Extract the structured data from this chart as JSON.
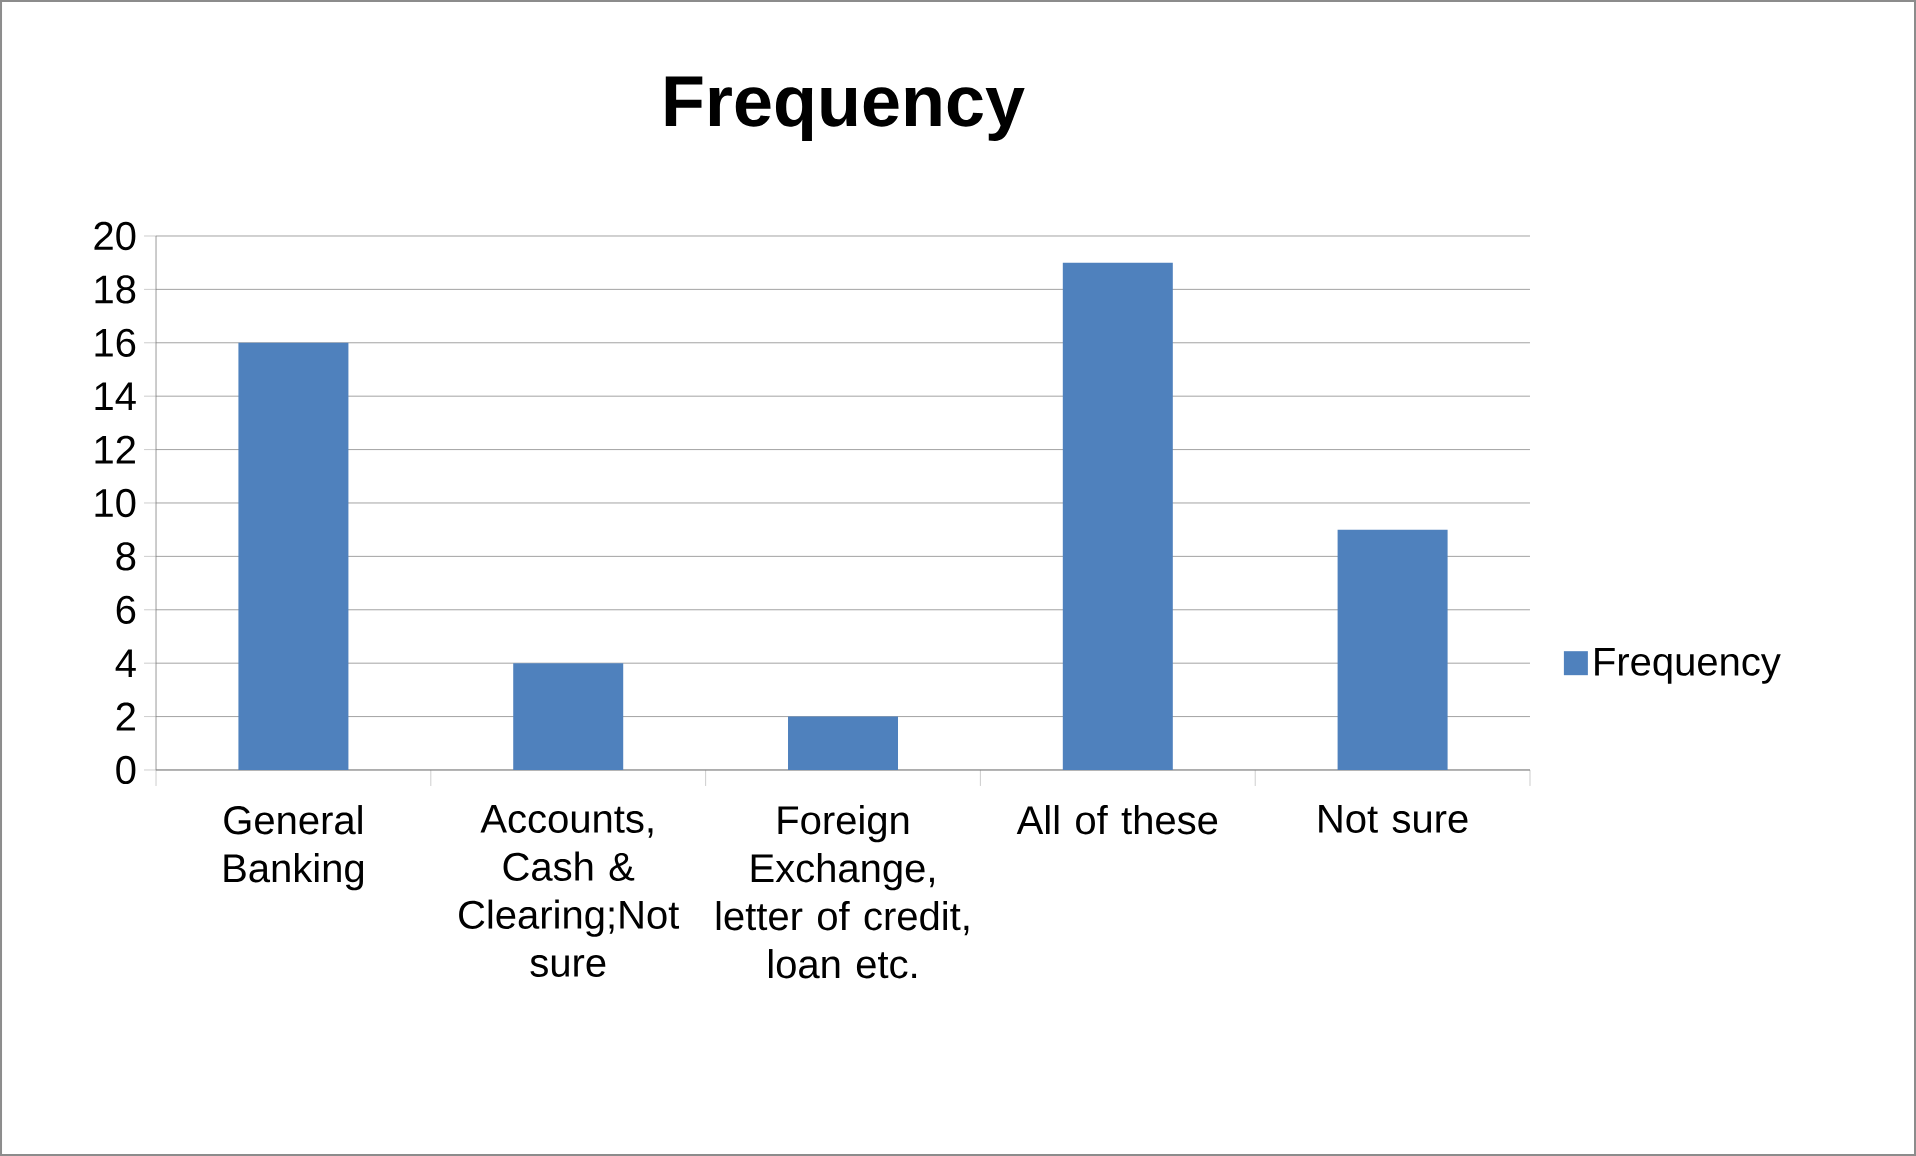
{
  "chart_data": {
    "type": "bar",
    "title": "Frequency",
    "categories": [
      "General Banking",
      "Accounts, Cash & Clearing;Not sure",
      "Foreign Exchange, letter of credit, loan etc.",
      "All of these",
      "Not sure"
    ],
    "series": [
      {
        "name": "Frequency",
        "color": "#4f81bd",
        "values": [
          16,
          4,
          2,
          19,
          9
        ]
      }
    ],
    "ylim": [
      0,
      20
    ],
    "yticks": [
      0,
      2,
      4,
      6,
      8,
      10,
      12,
      14,
      16,
      18,
      20
    ],
    "grid": "y",
    "legend": "right"
  }
}
